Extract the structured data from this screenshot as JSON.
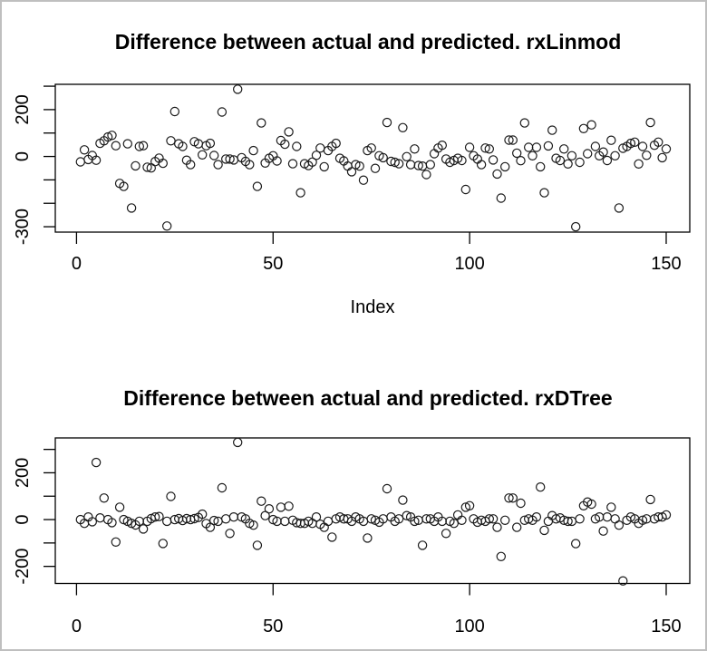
{
  "window": {
    "type": "r-graphics-plot-output",
    "background": "#ffffff",
    "border_color": "#bfbfbf",
    "marker_color": "#1a1a1a"
  },
  "chart_data": [
    {
      "type": "scatter",
      "title": "Difference between actual and predicted. rxLinmod",
      "xlabel": "Index",
      "ylabel": "",
      "marker": "open-circle",
      "legend": "none",
      "grid": false,
      "x_description": "Index 1..150 (implicit observation number)",
      "xlim": [
        -5.4,
        156
      ],
      "ylim": [
        -323,
        308
      ],
      "x_ticks": [
        0,
        50,
        100,
        150
      ],
      "y_ticks": [
        -300,
        -200,
        -100,
        0,
        100,
        200,
        300
      ],
      "y_tick_labels_shown": [
        -300,
        0,
        200
      ],
      "values": [
        -23,
        28,
        -13,
        4,
        -16,
        56,
        67,
        83,
        90,
        46,
        -115,
        -128,
        54,
        -220,
        -40,
        43,
        46,
        -46,
        -49,
        -22,
        -7,
        -29,
        -297,
        67,
        192,
        54,
        43,
        -16,
        -35,
        63,
        54,
        7,
        46,
        56,
        4,
        -35,
        190,
        -11,
        -11,
        -15,
        287,
        -5,
        -21,
        -35,
        25,
        -128,
        143,
        -28,
        -8,
        3,
        -19,
        68,
        52,
        105,
        -31,
        43,
        -155,
        -31,
        -39,
        -24,
        5,
        36,
        -44,
        25,
        43,
        56,
        -8,
        -19,
        -41,
        -65,
        -35,
        -41,
        -101,
        25,
        36,
        -51,
        3,
        -5,
        145,
        -21,
        -25,
        -31,
        123,
        -1,
        -35,
        32,
        -39,
        -41,
        -77,
        -35,
        12,
        36,
        48,
        -11,
        -25,
        -17,
        -8,
        -17,
        -141,
        39,
        3,
        -11,
        -35,
        36,
        32,
        -15,
        -75,
        -178,
        -44,
        70,
        70,
        14,
        -18,
        143,
        39,
        3,
        39,
        -44,
        -155,
        45,
        112,
        -8,
        -17,
        32,
        -32,
        3,
        -300,
        -25,
        119,
        12,
        135,
        43,
        3,
        19,
        -17,
        69,
        3,
        -220,
        35,
        43,
        56,
        61,
        -32,
        43,
        5,
        145,
        48,
        61,
        -5,
        32
      ]
    },
    {
      "type": "scatter",
      "title": "Difference between actual and predicted. rxDTree",
      "xlabel": "",
      "ylabel": "",
      "marker": "open-circle",
      "legend": "none",
      "grid": false,
      "x_description": "Index 1..150 (implicit observation number)",
      "xlim": [
        -5.4,
        156
      ],
      "ylim": [
        -273,
        349
      ],
      "x_ticks": [
        0,
        50,
        100,
        150
      ],
      "y_ticks": [
        -200,
        -100,
        0,
        100,
        200,
        300
      ],
      "y_tick_labels_shown": [
        -200,
        0,
        200
      ],
      "values": [
        0,
        -16,
        11,
        -9,
        244,
        7,
        92,
        0,
        -13,
        -96,
        53,
        0,
        -7,
        -16,
        -23,
        -7,
        -40,
        -7,
        4,
        11,
        13,
        -102,
        -7,
        99,
        0,
        4,
        -4,
        4,
        0,
        4,
        9,
        23,
        -17,
        -33,
        -4,
        -7,
        136,
        3,
        -59,
        11,
        330,
        11,
        3,
        -16,
        -24,
        -110,
        79,
        17,
        46,
        0,
        -7,
        53,
        -7,
        57,
        -3,
        -13,
        -16,
        -16,
        -7,
        -16,
        11,
        -20,
        -33,
        -7,
        -75,
        3,
        11,
        3,
        3,
        -7,
        11,
        3,
        -7,
        -79,
        3,
        -3,
        -11,
        3,
        132,
        11,
        -7,
        3,
        83,
        17,
        11,
        -7,
        -3,
        -110,
        3,
        3,
        -7,
        11,
        -7,
        -59,
        -7,
        -16,
        20,
        -3,
        53,
        59,
        3,
        -11,
        -3,
        -7,
        3,
        3,
        -33,
        -158,
        -3,
        92,
        92,
        -33,
        70,
        -3,
        3,
        -3,
        11,
        139,
        -46,
        -7,
        17,
        3,
        7,
        -3,
        -7,
        -7,
        -103,
        3,
        59,
        75,
        66,
        3,
        11,
        -49,
        11,
        53,
        3,
        -24,
        -262,
        -3,
        11,
        3,
        -16,
        -3,
        3,
        86,
        3,
        11,
        11,
        20
      ]
    }
  ]
}
